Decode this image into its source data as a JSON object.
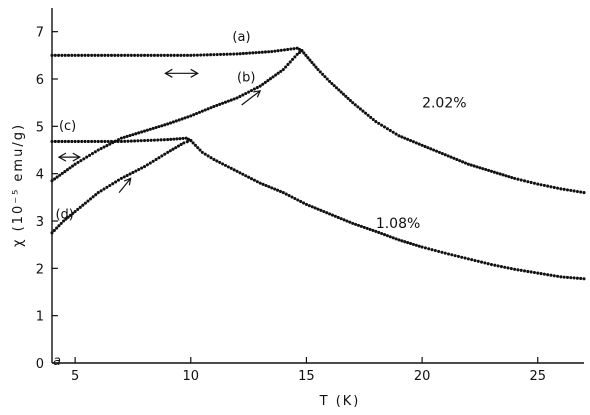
{
  "chart_data": {
    "type": "scatter",
    "xlabel": "T    (K)",
    "ylabel": "χ   (10⁻⁵ emu/g)",
    "xlim": [
      4,
      27
    ],
    "ylim": [
      0,
      7.5
    ],
    "x_ticks": [
      5,
      10,
      15,
      20,
      25
    ],
    "y_ticks": [
      0,
      1,
      2,
      3,
      4,
      5,
      6,
      7
    ],
    "corner_mark": "a",
    "grid": false,
    "series": [
      {
        "name": "(a)",
        "label_pos": [
          11.8,
          6.8
        ],
        "points": [
          [
            4.0,
            6.5
          ],
          [
            6.0,
            6.5
          ],
          [
            8.0,
            6.5
          ],
          [
            10.0,
            6.5
          ],
          [
            12.0,
            6.53
          ],
          [
            13.5,
            6.58
          ],
          [
            14.6,
            6.65
          ],
          [
            14.8,
            6.6
          ]
        ],
        "arrow": {
          "type": "double",
          "x1": 8.9,
          "x2": 10.3,
          "y": 6.12
        }
      },
      {
        "name": "(b)",
        "label_pos": [
          12.0,
          5.95
        ],
        "points": [
          [
            4.0,
            3.85
          ],
          [
            5.0,
            4.2
          ],
          [
            6.0,
            4.5
          ],
          [
            7.0,
            4.75
          ],
          [
            8.0,
            4.9
          ],
          [
            9.0,
            5.05
          ],
          [
            10.0,
            5.22
          ],
          [
            11.0,
            5.42
          ],
          [
            12.0,
            5.6
          ],
          [
            13.0,
            5.85
          ],
          [
            14.0,
            6.2
          ],
          [
            14.6,
            6.52
          ],
          [
            14.8,
            6.6
          ]
        ],
        "arrow": {
          "type": "single",
          "x1": 12.2,
          "y1": 5.45,
          "x2": 13.0,
          "y2": 5.75
        }
      },
      {
        "name": "2.02%",
        "label_pos": [
          20.0,
          5.4
        ],
        "points": [
          [
            14.8,
            6.6
          ],
          [
            15.5,
            6.2
          ],
          [
            16.0,
            5.95
          ],
          [
            17.0,
            5.5
          ],
          [
            18.0,
            5.1
          ],
          [
            19.0,
            4.8
          ],
          [
            20.0,
            4.6
          ],
          [
            21.0,
            4.4
          ],
          [
            22.0,
            4.2
          ],
          [
            23.0,
            4.05
          ],
          [
            24.0,
            3.9
          ],
          [
            25.0,
            3.78
          ],
          [
            26.0,
            3.68
          ],
          [
            27.0,
            3.6
          ]
        ]
      },
      {
        "name": "(c)",
        "label_pos": [
          4.3,
          4.92
        ],
        "points": [
          [
            4.0,
            4.68
          ],
          [
            5.0,
            4.68
          ],
          [
            6.0,
            4.68
          ],
          [
            7.0,
            4.68
          ],
          [
            8.0,
            4.7
          ],
          [
            9.0,
            4.72
          ],
          [
            9.8,
            4.75
          ],
          [
            10.0,
            4.7
          ]
        ],
        "arrow": {
          "type": "double",
          "x1": 4.3,
          "x2": 5.2,
          "y": 4.35
        }
      },
      {
        "name": "(d)",
        "label_pos": [
          4.15,
          3.05
        ],
        "points": [
          [
            4.0,
            2.75
          ],
          [
            4.5,
            3.0
          ],
          [
            5.0,
            3.2
          ],
          [
            6.0,
            3.6
          ],
          [
            7.0,
            3.9
          ],
          [
            8.0,
            4.15
          ],
          [
            9.0,
            4.45
          ],
          [
            9.7,
            4.65
          ],
          [
            10.0,
            4.7
          ]
        ],
        "arrow": {
          "type": "single",
          "x1": 6.9,
          "y1": 3.6,
          "x2": 7.4,
          "y2": 3.9
        }
      },
      {
        "name": "1.08%",
        "label_pos": [
          18.0,
          2.85
        ],
        "points": [
          [
            10.0,
            4.7
          ],
          [
            10.5,
            4.45
          ],
          [
            11.0,
            4.3
          ],
          [
            12.0,
            4.05
          ],
          [
            13.0,
            3.8
          ],
          [
            14.0,
            3.6
          ],
          [
            15.0,
            3.35
          ],
          [
            16.0,
            3.15
          ],
          [
            17.0,
            2.95
          ],
          [
            18.0,
            2.78
          ],
          [
            19.0,
            2.6
          ],
          [
            20.0,
            2.45
          ],
          [
            21.0,
            2.32
          ],
          [
            22.0,
            2.2
          ],
          [
            23.0,
            2.08
          ],
          [
            24.0,
            1.98
          ],
          [
            25.0,
            1.9
          ],
          [
            26.0,
            1.82
          ],
          [
            27.0,
            1.78
          ]
        ]
      }
    ]
  }
}
